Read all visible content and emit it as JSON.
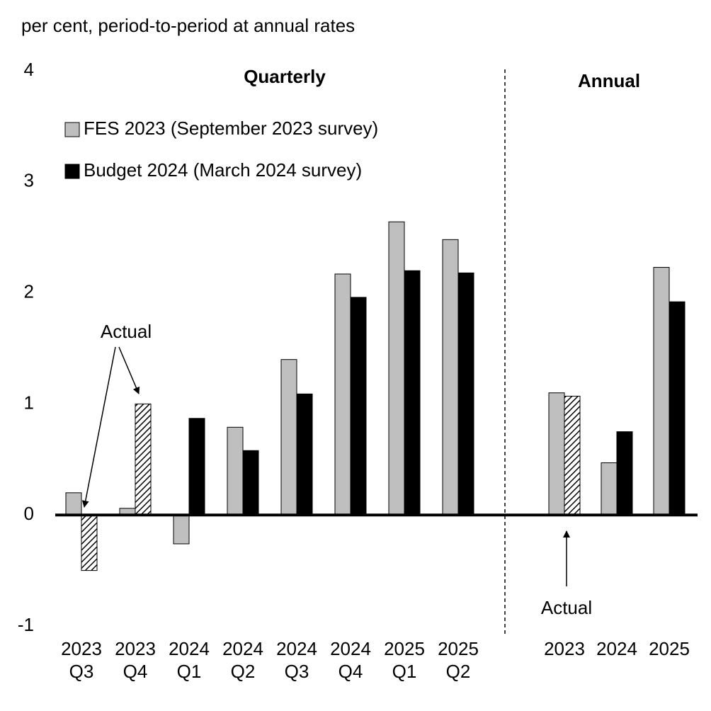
{
  "chart_data": {
    "type": "bar",
    "ylabel": "per cent, period-to-period at annual rates",
    "sections": [
      "Quarterly",
      "Annual"
    ],
    "categories": [
      [
        "2023",
        "Q3"
      ],
      [
        "2023",
        "Q4"
      ],
      [
        "2024",
        "Q1"
      ],
      [
        "2024",
        "Q2"
      ],
      [
        "2024",
        "Q3"
      ],
      [
        "2024",
        "Q4"
      ],
      [
        "2025",
        "Q1"
      ],
      [
        "2025",
        "Q2"
      ],
      [
        "2023"
      ],
      [
        "2024"
      ],
      [
        "2025"
      ]
    ],
    "series": [
      {
        "name": "FES 2023 (September 2023 survey)",
        "color": "#bfbfbf",
        "values": [
          0.2,
          0.06,
          -0.26,
          0.79,
          1.4,
          2.17,
          2.64,
          2.48,
          1.1,
          0.47,
          2.23
        ]
      },
      {
        "name": "Budget 2024 (March 2024 survey)",
        "color": "#000000",
        "values": [
          -0.5,
          1.0,
          0.87,
          0.58,
          1.09,
          1.96,
          2.2,
          2.18,
          1.07,
          0.75,
          1.92
        ],
        "hatched": [
          true,
          true,
          false,
          false,
          false,
          false,
          false,
          false,
          true,
          false,
          false
        ]
      }
    ],
    "annotations": [
      "Actual",
      "Actual"
    ],
    "ylim": [
      -1,
      4
    ],
    "yticks": [
      -1,
      0,
      1,
      2,
      3,
      4
    ],
    "legend": "upper left"
  }
}
